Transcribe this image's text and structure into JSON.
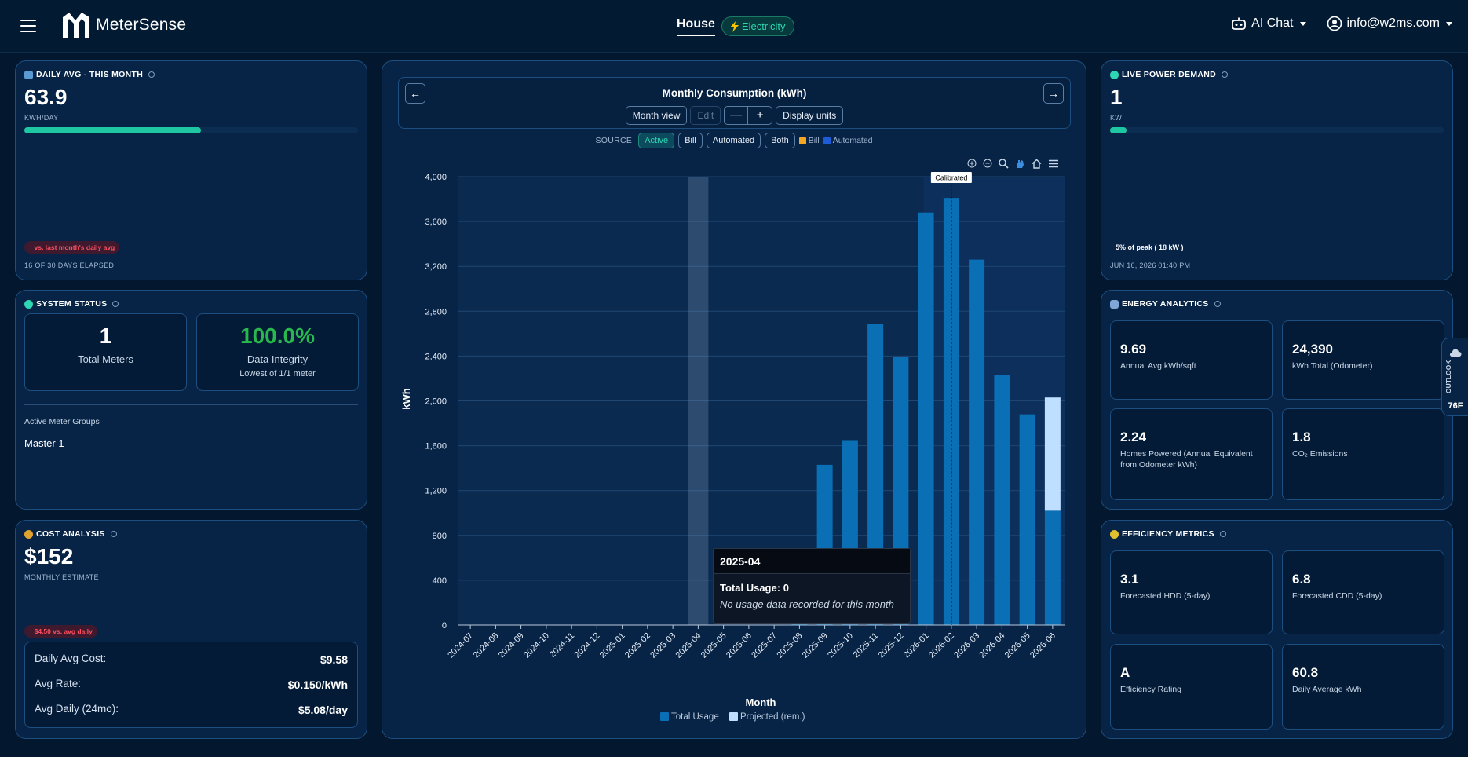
{
  "header": {
    "brand": "MeterSense",
    "property": "House",
    "utility": "Electricity",
    "ai_chat": "AI Chat",
    "account": "info@w2ms.com"
  },
  "daily_avg": {
    "title": "DAILY AVG - THIS MONTH",
    "value": "63.9",
    "unit": "KWH/DAY",
    "progress_fraction": 0.53,
    "badge": "↑ vs. last month's daily avg",
    "elapsed": "16 OF 30 DAYS ELAPSED"
  },
  "system_status": {
    "title": "SYSTEM STATUS",
    "meters_value": "1",
    "meters_label": "Total Meters",
    "integrity_value": "100.0%",
    "integrity_label": "Data Integrity",
    "integrity_sub": "Lowest of 1/1 meter",
    "groups_label": "Active Meter Groups",
    "group_1": "Master 1"
  },
  "cost": {
    "title": "COST ANALYSIS",
    "value": "$152",
    "sub": "MONTHLY ESTIMATE",
    "badge": "↑ $4.50 vs. avg daily",
    "rows": [
      {
        "label": "Daily Avg Cost:",
        "value": "$9.58"
      },
      {
        "label": "Avg Rate:",
        "value": "$0.150/kWh"
      },
      {
        "label": "Avg Daily (24mo):",
        "value": "$5.08/day"
      }
    ]
  },
  "chart_panel": {
    "title": "Monthly Consumption (kWh)",
    "prev": "←",
    "next": "→",
    "month_view": "Month view",
    "edit": "Edit",
    "minus": "—",
    "plus": "+",
    "display_units": "Display units",
    "source_label": "SOURCE",
    "src_active": "Active",
    "src_bill": "Bill",
    "src_automated": "Automated",
    "src_both": "Both",
    "legend_bill": "Bill",
    "legend_automated": "Automated",
    "calibrated": "Calibrated",
    "tooltip": {
      "month": "2025-04",
      "usage_label": "Total Usage:",
      "usage_value": "0",
      "note": "No usage data recorded for this month"
    }
  },
  "chart_data": {
    "type": "bar",
    "title": "Monthly Consumption (kWh)",
    "xlabel": "Month",
    "ylabel": "kWh",
    "ylim": [
      0,
      4000
    ],
    "yticks": [
      0,
      400,
      800,
      1200,
      1600,
      2000,
      2400,
      2800,
      3200,
      3600,
      4000
    ],
    "ytick_labels": [
      "0",
      "400",
      "800",
      "1,200",
      "1,600",
      "2,000",
      "2,400",
      "2,800",
      "3,200",
      "3,600",
      "4,000"
    ],
    "categories": [
      "2024-07",
      "2024-08",
      "2024-09",
      "2024-10",
      "2024-11",
      "2024-12",
      "2025-01",
      "2025-02",
      "2025-03",
      "2025-04",
      "2025-05",
      "2025-06",
      "2025-07",
      "2025-08",
      "2025-09",
      "2025-10",
      "2025-11",
      "2025-12",
      "2026-01",
      "2026-02",
      "2026-03",
      "2026-04",
      "2026-05",
      "2026-06"
    ],
    "series": [
      {
        "name": "Total Usage",
        "color": "#0a6fb5",
        "values": [
          0,
          0,
          0,
          0,
          0,
          0,
          0,
          0,
          0,
          0,
          0,
          0,
          0,
          270,
          1430,
          1650,
          2690,
          2390,
          3680,
          3810,
          3260,
          2230,
          1880,
          1020
        ]
      },
      {
        "name": "Projected (rem.)",
        "color": "#bedfff",
        "values": [
          0,
          0,
          0,
          0,
          0,
          0,
          0,
          0,
          0,
          0,
          0,
          0,
          0,
          0,
          0,
          0,
          0,
          0,
          0,
          0,
          0,
          0,
          0,
          1010
        ]
      }
    ],
    "highlighted_category": "2025-04",
    "calibrated_marker": "2026-02",
    "grid": true,
    "legend_position": "bottom"
  },
  "live_power": {
    "title": "LIVE POWER DEMAND",
    "value": "1",
    "unit": "KW",
    "progress_fraction": 0.05,
    "peak_note": "5% of peak ( 18 kW )",
    "timestamp": "JUN 16, 2026 01:40 PM"
  },
  "energy_analytics": {
    "title": "ENERGY ANALYTICS",
    "tiles": [
      {
        "value": "9.69",
        "label": "Annual Avg kWh/sqft"
      },
      {
        "value": "24,390",
        "label": "kWh Total (Odometer)"
      },
      {
        "value": "2.24",
        "label": "Homes Powered (Annual Equivalent from Odometer kWh)"
      },
      {
        "value": "1.8",
        "label": "CO₂ Emissions"
      }
    ]
  },
  "efficiency": {
    "title": "EFFICIENCY METRICS",
    "tiles": [
      {
        "value": "3.1",
        "label": "Forecasted HDD (5-day)"
      },
      {
        "value": "6.8",
        "label": "Forecasted CDD (5-day)"
      },
      {
        "value": "A",
        "label": "Efficiency Rating"
      },
      {
        "value": "60.8",
        "label": "Daily Average kWh"
      }
    ]
  },
  "outlook": {
    "label": "OUTLOOK",
    "temp": "76F"
  }
}
